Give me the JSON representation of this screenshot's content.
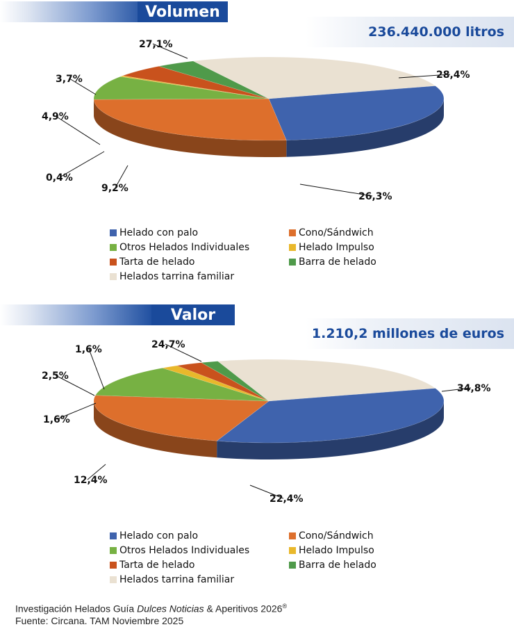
{
  "chart_data": [
    {
      "type": "pie",
      "title": "Volumen",
      "total": "236.440.000 litros",
      "labels": [
        "Helado con palo",
        "Cono/Sándwich",
        "Otros Helados Individuales",
        "Helado Impulso",
        "Tarta de helado",
        "Barra de helado",
        "Helados tarrina familiar"
      ],
      "values": [
        28.4,
        26.3,
        9.2,
        0.4,
        4.9,
        3.7,
        27.1
      ],
      "value_labels": [
        "28,4%",
        "26,3%",
        "9,2%",
        "0,4%",
        "4,9%",
        "3,7%",
        "27,1%"
      ],
      "legend_position": "bottom"
    },
    {
      "type": "pie",
      "title": "Valor",
      "total": "1.210,2 millones de euros",
      "labels": [
        "Helado con palo",
        "Cono/Sándwich",
        "Otros Helados Individuales",
        "Helado Impulso",
        "Tarta de helado",
        "Barra de helado",
        "Helados tarrina familiar"
      ],
      "values": [
        34.8,
        22.4,
        12.4,
        1.6,
        2.5,
        1.6,
        24.7
      ],
      "value_labels": [
        "34,8%",
        "22,4%",
        "12,4%",
        "1,6%",
        "2,5%",
        "1,6%",
        "24,7%"
      ],
      "legend_position": "bottom"
    }
  ],
  "colors": [
    "#3f63ad",
    "#dd6f2c",
    "#77b143",
    "#e9b82b",
    "#c9521d",
    "#4f9a4a",
    "#eae1d2"
  ],
  "legend_items": [
    {
      "label": "Helado con palo",
      "color": "#3f63ad"
    },
    {
      "label": "Cono/Sándwich",
      "color": "#dd6f2c"
    },
    {
      "label": "Otros Helados Individuales",
      "color": "#77b143"
    },
    {
      "label": "Helado Impulso",
      "color": "#e9b82b"
    },
    {
      "label": "Tarta de helado",
      "color": "#c9521d"
    },
    {
      "label": "Barra de helado",
      "color": "#4f9a4a"
    },
    {
      "label": "Helados tarrina familiar",
      "color": "#eae1d2"
    }
  ],
  "footer": {
    "line1_prefix": "Investigación Helados Guía ",
    "line1_italic": "Dulces Noticias",
    "line1_suffix": " & Aperitivos 2026",
    "line1_sup": "®",
    "line2": "Fuente: Circana. TAM Noviembre 2025"
  }
}
